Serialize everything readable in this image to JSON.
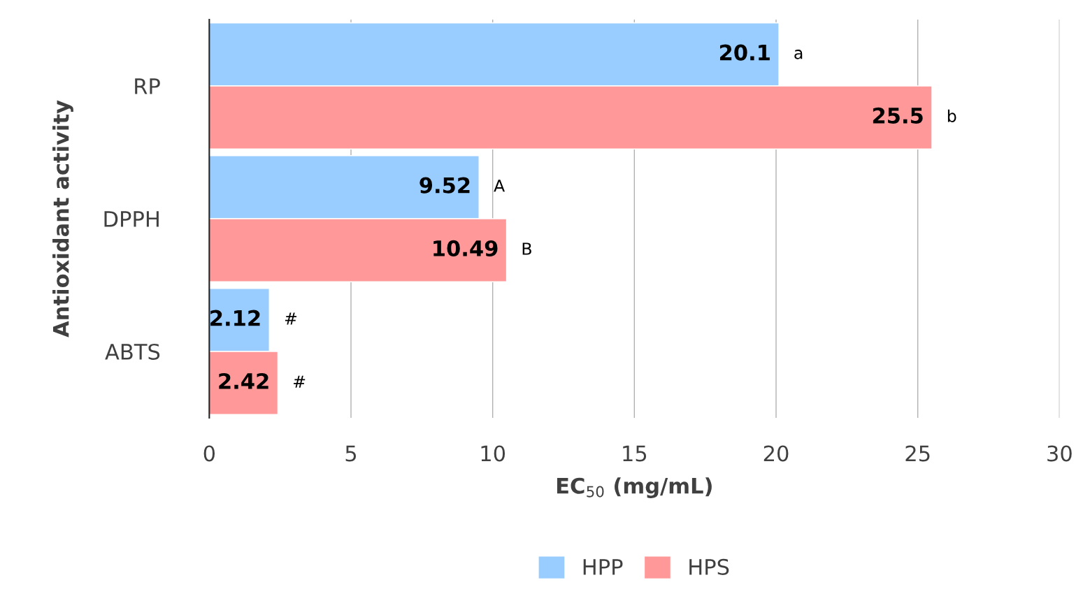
{
  "chart_data": {
    "type": "bar",
    "orientation": "horizontal",
    "categories": [
      "RP",
      "DPPH",
      "ABTS"
    ],
    "series": [
      {
        "name": "HPP",
        "color": "#99ccff",
        "values": [
          20.1,
          9.52,
          2.12
        ]
      },
      {
        "name": "HPS",
        "color": "#ff9999",
        "values": [
          25.5,
          10.49,
          2.42
        ]
      }
    ],
    "xlabel": "EC$_{50}$ (mg/mL)",
    "ylabel": "Antioxidant activity",
    "xlim": [
      0,
      30
    ],
    "xticks": [
      0,
      5,
      10,
      15,
      20,
      25,
      30
    ],
    "grid": "x",
    "legend": "bottom",
    "data_labels": true,
    "annotations": [
      {
        "text": "a",
        "x": 20.1,
        "y": "RP"
      },
      {
        "text": "b",
        "x": 25.5,
        "y": "RP"
      },
      {
        "text": "A",
        "x": 9.52,
        "y": "DPPH"
      },
      {
        "text": "B",
        "x": 10.49,
        "y": "DPPH"
      },
      {
        "text": "#",
        "x": 2.12,
        "y": "ABTS"
      },
      {
        "text": "#",
        "x": 2.42,
        "y": "ABTS"
      }
    ]
  }
}
